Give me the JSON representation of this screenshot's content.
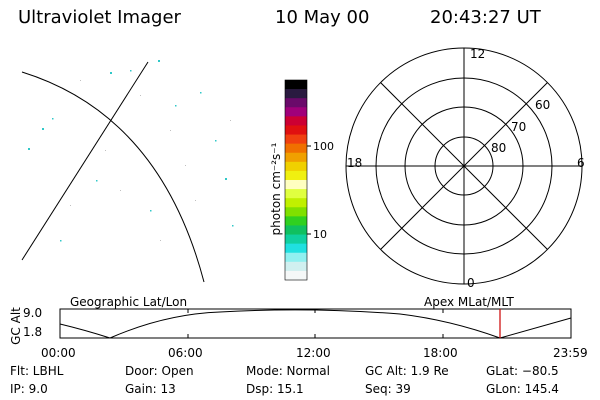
{
  "header": {
    "instrument": "Ultraviolet Imager",
    "date": "10 May 00",
    "time": "20:43:27 UT"
  },
  "colorbar": {
    "unit_label": "photon cm⁻²s⁻¹",
    "tick_labels": [
      "100",
      "10"
    ],
    "colors": [
      "#000000",
      "#2a1a40",
      "#6a0a6a",
      "#a0007a",
      "#cc0033",
      "#e01010",
      "#f04010",
      "#f07000",
      "#f0a000",
      "#f0d000",
      "#f0f010",
      "#ffffc0",
      "#e0ff40",
      "#c0f000",
      "#80e000",
      "#30d020",
      "#10c060",
      "#10d0a0",
      "#20e0e0",
      "#90f0f0",
      "#d0f0f0",
      "#f5f8f8"
    ]
  },
  "polar": {
    "hour_labels": {
      "top": "12",
      "left": "18",
      "right": "6",
      "bottom": "0"
    },
    "lat_labels": [
      "60",
      "70",
      "80"
    ]
  },
  "panels": {
    "left_label": "Geographic Lat/Lon",
    "right_label": "Apex  MLat/MLT"
  },
  "altitude_plot": {
    "axis_label": "GC Alt",
    "y_top": "9.0",
    "y_bottom": "1.8",
    "x_ticks": [
      "00:00",
      "06:00",
      "12:00",
      "18:00",
      "23:59"
    ],
    "marker_color": "#cc0000"
  },
  "info": {
    "filter": "Flt: LBHL",
    "door": "Door: Open",
    "mode": "Mode: Normal",
    "gc_alt": "GC Alt: 1.9 Re",
    "glat": "GLat: −80.5",
    "ip": "IP:  9.0",
    "gain": "Gain: 13",
    "dsp": "Dsp:   15.1",
    "seq": "Seq: 39",
    "glon": "GLon: 145.4"
  }
}
